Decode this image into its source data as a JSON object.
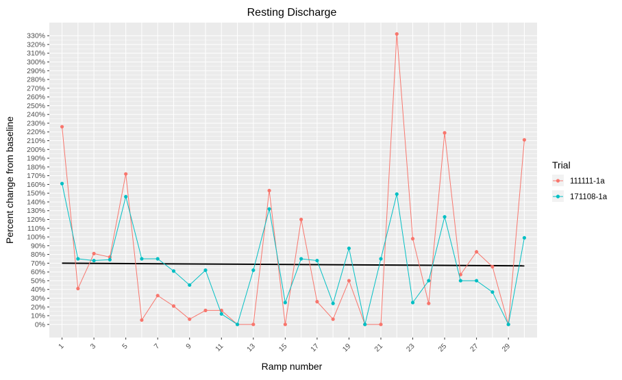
{
  "chart_data": {
    "type": "line",
    "title": "Resting Discharge",
    "xlabel": "Ramp number",
    "ylabel": "Percent change from baseline",
    "x": [
      1,
      2,
      3,
      4,
      5,
      6,
      7,
      8,
      9,
      10,
      11,
      12,
      13,
      14,
      15,
      16,
      17,
      18,
      19,
      20,
      21,
      22,
      23,
      24,
      25,
      26,
      27,
      28,
      29,
      30
    ],
    "xticks": [
      "1",
      "3",
      "5",
      "7",
      "9",
      "11",
      "13",
      "15",
      "17",
      "19",
      "21",
      "23",
      "25",
      "27",
      "29"
    ],
    "ylim": [
      -15,
      345
    ],
    "yticks": [
      "0%",
      "10%",
      "20%",
      "30%",
      "40%",
      "50%",
      "60%",
      "70%",
      "80%",
      "90%",
      "100%",
      "110%",
      "120%",
      "130%",
      "140%",
      "150%",
      "160%",
      "170%",
      "180%",
      "190%",
      "200%",
      "210%",
      "220%",
      "230%",
      "240%",
      "250%",
      "260%",
      "270%",
      "280%",
      "290%",
      "300%",
      "310%",
      "320%",
      "330%"
    ],
    "grid": true,
    "legend": {
      "title": "Trial",
      "position": "right"
    },
    "series": [
      {
        "name": "111111-1a",
        "color": "#F8766D",
        "values": [
          226,
          41,
          81,
          77,
          172,
          5,
          33,
          21,
          6,
          16,
          16,
          0,
          0,
          153,
          0,
          120,
          26,
          6,
          50,
          0,
          0,
          332,
          98,
          24,
          219,
          57,
          83,
          66,
          0,
          211
        ]
      },
      {
        "name": "171108-1a",
        "color": "#00BFC4",
        "values": [
          161,
          75,
          73,
          74,
          146,
          75,
          75,
          61,
          45,
          62,
          12,
          0,
          62,
          132,
          25,
          75,
          73,
          24,
          87,
          0,
          75,
          149,
          25,
          50,
          123,
          50,
          50,
          37,
          0,
          99
        ]
      }
    ],
    "reference_line": {
      "color": "#000000",
      "x": [
        1,
        30
      ],
      "values": [
        70,
        67
      ]
    }
  }
}
